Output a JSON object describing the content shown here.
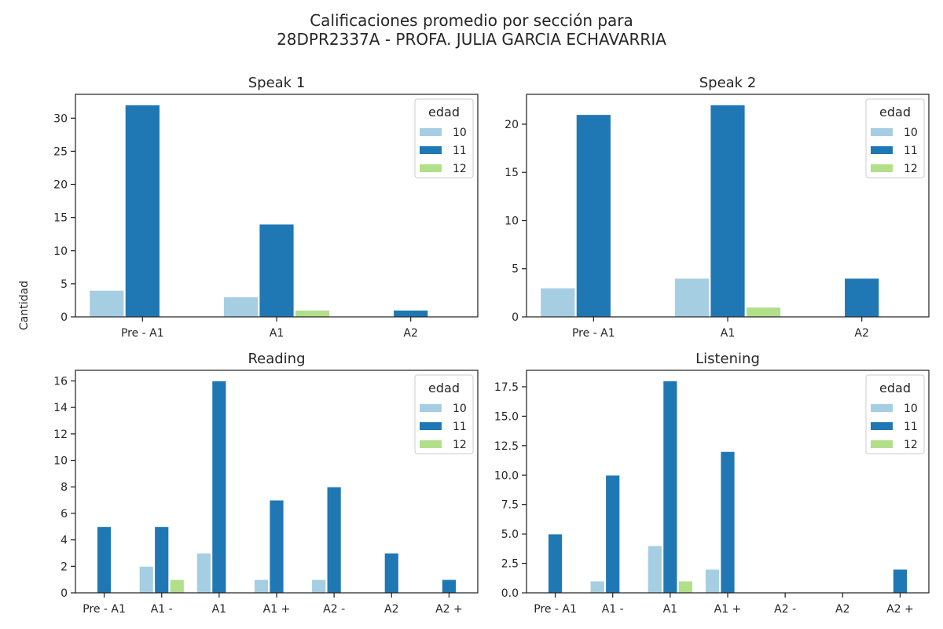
{
  "figure": {
    "title_line1": "Calificaciones promedio por sección para",
    "title_line2": "28DPR2337A - PROFA. JULIA GARCIA ECHAVARRIA",
    "shared_ylabel": "Cantidad"
  },
  "colors": {
    "10": "#a6cee3",
    "11": "#1f78b4",
    "12": "#b2df8a"
  },
  "chart_data": [
    {
      "type": "bar",
      "title": "Speak 1",
      "categories": [
        "Pre - A1",
        "A1",
        "A2"
      ],
      "ylim": [
        0,
        33.6
      ],
      "yticks": [
        0,
        5,
        10,
        15,
        20,
        25,
        30
      ],
      "legend": {
        "title": "edad",
        "placement": "top-right"
      },
      "series": [
        {
          "name": "10",
          "values": [
            4,
            3,
            0
          ]
        },
        {
          "name": "11",
          "values": [
            32,
            14,
            1
          ]
        },
        {
          "name": "12",
          "values": [
            0,
            1,
            0
          ]
        }
      ]
    },
    {
      "type": "bar",
      "title": "Speak 2",
      "categories": [
        "Pre - A1",
        "A1",
        "A2"
      ],
      "ylim": [
        0,
        23.1
      ],
      "yticks": [
        0,
        5,
        10,
        15,
        20
      ],
      "legend": {
        "title": "edad",
        "placement": "top-right"
      },
      "series": [
        {
          "name": "10",
          "values": [
            3,
            4,
            0
          ]
        },
        {
          "name": "11",
          "values": [
            21,
            22,
            4
          ]
        },
        {
          "name": "12",
          "values": [
            0,
            1,
            0
          ]
        }
      ]
    },
    {
      "type": "bar",
      "title": "Reading",
      "categories": [
        "Pre - A1",
        "A1 -",
        "A1",
        "A1 +",
        "A2 -",
        "A2",
        "A2 +"
      ],
      "ylim": [
        0,
        16.8
      ],
      "yticks": [
        0,
        2,
        4,
        6,
        8,
        10,
        12,
        14,
        16
      ],
      "legend": {
        "title": "edad",
        "placement": "top-right"
      },
      "series": [
        {
          "name": "10",
          "values": [
            0,
            2,
            3,
            1,
            1,
            0,
            0
          ]
        },
        {
          "name": "11",
          "values": [
            5,
            5,
            16,
            7,
            8,
            3,
            1
          ]
        },
        {
          "name": "12",
          "values": [
            0,
            1,
            0,
            0,
            0,
            0,
            0
          ]
        }
      ]
    },
    {
      "type": "bar",
      "title": "Listening",
      "categories": [
        "Pre - A1",
        "A1 -",
        "A1",
        "A1 +",
        "A2 -",
        "A2",
        "A2 +"
      ],
      "ylim": [
        0,
        18.9
      ],
      "yticks": [
        "0.0",
        "2.5",
        "5.0",
        "7.5",
        "10.0",
        "12.5",
        "15.0",
        "17.5"
      ],
      "legend": {
        "title": "edad",
        "placement": "top-right"
      },
      "series": [
        {
          "name": "10",
          "values": [
            0,
            1,
            4,
            2,
            0,
            0,
            0
          ]
        },
        {
          "name": "11",
          "values": [
            5,
            10,
            18,
            12,
            0,
            0,
            2
          ]
        },
        {
          "name": "12",
          "values": [
            0,
            0,
            1,
            0,
            0,
            0,
            0
          ]
        }
      ]
    }
  ]
}
